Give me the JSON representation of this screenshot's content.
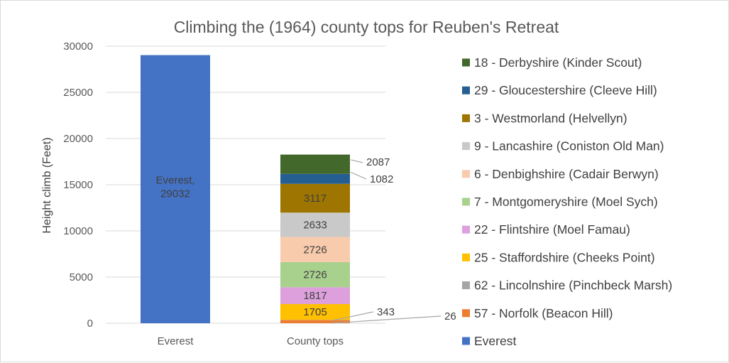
{
  "chart_data": {
    "type": "bar",
    "stacked": true,
    "title": "Climbing the (1964) county tops for Reuben's Retreat",
    "xlabel": "",
    "ylabel": "Height climb (Feet)",
    "ylim": [
      0,
      30000
    ],
    "yticks": [
      0,
      5000,
      10000,
      15000,
      20000,
      25000,
      30000
    ],
    "grid": true,
    "legend_position": "right",
    "categories": [
      "Everest",
      "County tops"
    ],
    "series": [
      {
        "name": "Everest",
        "color": "#4472c4",
        "values": [
          29032,
          0
        ],
        "labels": [
          "Everest, 29032",
          ""
        ]
      },
      {
        "name": "57 - Norfolk (Beacon Hill)",
        "color": "#ed7d31",
        "values": [
          0,
          343
        ],
        "labels": [
          "",
          "343"
        ]
      },
      {
        "name": "62 - Lincolnshire (Pinchbeck Marsh)",
        "color": "#a5a5a5",
        "values": [
          0,
          26
        ],
        "labels": [
          "",
          "26"
        ]
      },
      {
        "name": "25 - Staffordshire (Cheeks Point)",
        "color": "#ffc000",
        "values": [
          0,
          1705
        ],
        "labels": [
          "",
          "1705"
        ]
      },
      {
        "name": "22 - Flintshire (Moel Famau)",
        "color": "#dda0dd",
        "values": [
          0,
          1817
        ],
        "labels": [
          "",
          "1817"
        ]
      },
      {
        "name": "7 - Montgomeryshire (Moel Sych)",
        "color": "#a9d18e",
        "values": [
          0,
          2726
        ],
        "labels": [
          "",
          "2726"
        ]
      },
      {
        "name": "6 - Denbighshire (Cadair Berwyn)",
        "color": "#f8cbad",
        "values": [
          0,
          2726
        ],
        "labels": [
          "",
          "2726"
        ]
      },
      {
        "name": "9 - Lancashire (Coniston Old Man)",
        "color": "#c9c9c9",
        "values": [
          0,
          2633
        ],
        "labels": [
          "",
          "2633"
        ]
      },
      {
        "name": "3 - Westmorland (Helvellyn)",
        "color": "#9e7500",
        "values": [
          0,
          3117
        ],
        "labels": [
          "",
          "3117"
        ]
      },
      {
        "name": "29 - Gloucestershire (Cleeve Hill)",
        "color": "#255e91",
        "values": [
          0,
          1082
        ],
        "labels": [
          "",
          "1082"
        ]
      },
      {
        "name": "18 - Derbyshire (Kinder Scout)",
        "color": "#43682b",
        "values": [
          0,
          2087
        ],
        "labels": [
          "",
          "2087"
        ]
      }
    ],
    "callout_labels": [
      "2087",
      "1082",
      "343",
      "26"
    ]
  }
}
